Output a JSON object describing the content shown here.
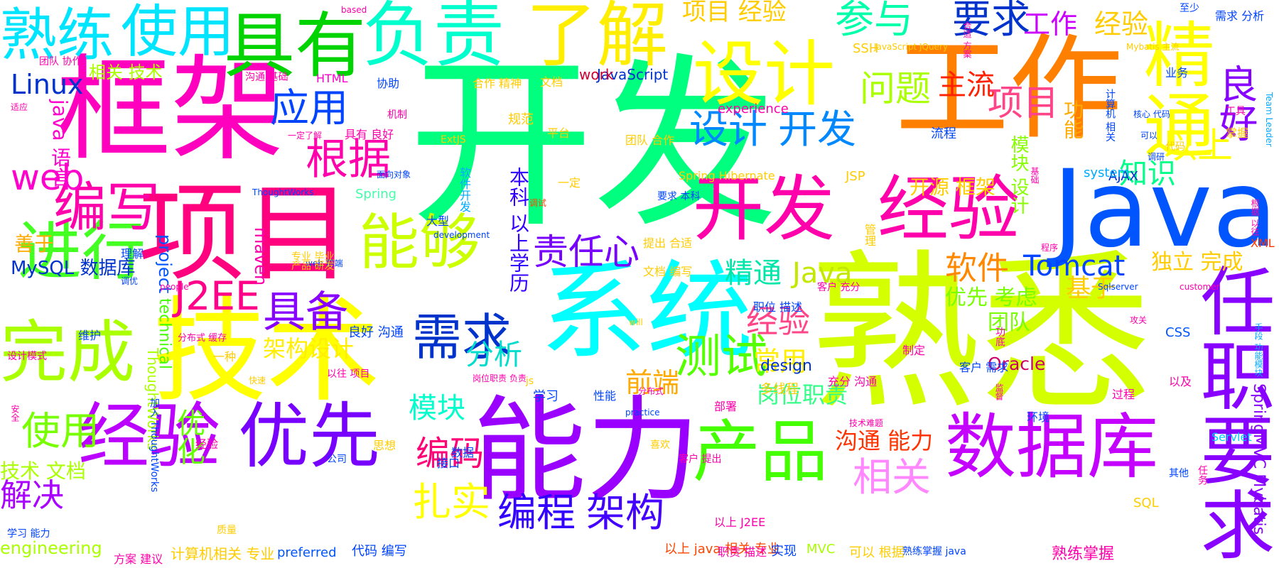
{
  "cloud": {
    "words": [
      {
        "text": "开发",
        "color": "#00ff7f"
      },
      {
        "text": "熟悉",
        "color": "#d4ff00"
      },
      {
        "text": "工作",
        "color": "#ff7f00"
      },
      {
        "text": "框架",
        "color": "#ff00bf"
      },
      {
        "text": "项目",
        "color": "#ff007f"
      },
      {
        "text": "技术",
        "color": "#ffff00"
      },
      {
        "text": "能力",
        "color": "#9900ff"
      },
      {
        "text": "系统",
        "color": "#00ffff"
      },
      {
        "text": "Java",
        "color": "#0055ff"
      },
      {
        "text": "负责",
        "color": "#00ffcc"
      },
      {
        "text": "具有",
        "color": "#00d400"
      },
      {
        "text": "了解",
        "color": "#ffee00"
      },
      {
        "text": "熟练",
        "color": "#00e5ff"
      },
      {
        "text": "使用",
        "color": "#00e5ff"
      },
      {
        "text": "设计",
        "color": "#ffff00"
      },
      {
        "text": "精通",
        "color": "#ffff00"
      },
      {
        "text": "开发",
        "color": "#ff00aa"
      },
      {
        "text": "经验",
        "color": "#ff00aa"
      },
      {
        "text": "任职要求",
        "color": "#8800ff"
      },
      {
        "text": "数据库",
        "color": "#c400ff"
      },
      {
        "text": "产品",
        "color": "#44ff00"
      },
      {
        "text": "经验",
        "color": "#bb00ff"
      },
      {
        "text": "优先",
        "color": "#7700ff"
      },
      {
        "text": "完成",
        "color": "#aaff00"
      },
      {
        "text": "进行",
        "color": "#44ff22"
      },
      {
        "text": "编写",
        "color": "#ff00aa"
      },
      {
        "text": "能够",
        "color": "#ccff00"
      },
      {
        "text": "需求",
        "color": "#0033cc"
      },
      {
        "text": "测试",
        "color": "#55ff00"
      },
      {
        "text": "设计",
        "color": "#0088ff"
      },
      {
        "text": "开发",
        "color": "#0088ff"
      },
      {
        "text": "项目",
        "color": "#ff4488"
      },
      {
        "text": "经验",
        "color": "#ff4488"
      },
      {
        "text": "参与",
        "color": "#00ffaa"
      },
      {
        "text": "要求",
        "color": "#0033cc"
      },
      {
        "text": "工作",
        "color": "#cc00ff"
      },
      {
        "text": "经验",
        "color": "#ffcc00"
      },
      {
        "text": "良好",
        "color": "#8800ff"
      },
      {
        "text": "以上",
        "color": "#ffff00"
      },
      {
        "text": "知识",
        "color": "#00ff88"
      },
      {
        "text": "问题",
        "color": "#aaff00"
      },
      {
        "text": "主流",
        "color": "#ff2200"
      },
      {
        "text": "应用",
        "color": "#0044ff"
      },
      {
        "text": "根据",
        "color": "#ff00aa"
      },
      {
        "text": "责任心",
        "color": "#7700ff"
      },
      {
        "text": "具备",
        "color": "#8800ff"
      },
      {
        "text": "J2EE",
        "color": "#ff0088"
      },
      {
        "text": "Tomcat",
        "color": "#0044ff"
      },
      {
        "text": "软件",
        "color": "#ff8800"
      },
      {
        "text": "精通",
        "color": "#00e5aa"
      },
      {
        "text": "Java",
        "color": "#c4e800"
      },
      {
        "text": "web",
        "color": "#ff00cc"
      },
      {
        "text": "Linux",
        "color": "#0033cc"
      },
      {
        "text": "相关 技术",
        "color": "#aaff00"
      },
      {
        "text": "使用",
        "color": "#77ff00"
      },
      {
        "text": "解决",
        "color": "#aa00ff"
      },
      {
        "text": "编码",
        "color": "#ff0077"
      },
      {
        "text": "模块",
        "color": "#00ffcc"
      },
      {
        "text": "分析",
        "color": "#00ddcc"
      },
      {
        "text": "扎实",
        "color": "#ffff00"
      },
      {
        "text": "编程",
        "color": "#3300ff"
      },
      {
        "text": "架构",
        "color": "#4400ff"
      },
      {
        "text": "相关",
        "color": "#ff88ff"
      },
      {
        "text": "沟通 能力",
        "color": "#ff3300"
      },
      {
        "text": "岗位职责",
        "color": "#33ff88"
      },
      {
        "text": "前端",
        "color": "#ffaa00"
      },
      {
        "text": "常用",
        "color": "#ffee00"
      },
      {
        "text": "架构设计",
        "color": "#ffee00"
      },
      {
        "text": "优化",
        "color": "#66ff00"
      },
      {
        "text": "本科 以上学历",
        "color": "#3300ff"
      },
      {
        "text": "独立 完成",
        "color": "#ffcc00"
      },
      {
        "text": "基于",
        "color": "#ffcc00"
      },
      {
        "text": "优先 考虑",
        "color": "#77ff00"
      },
      {
        "text": "团队",
        "color": "#77ff00"
      },
      {
        "text": "项目 经验",
        "color": "#ffcc00"
      },
      {
        "text": "java 语言",
        "color": "#ff00cc"
      },
      {
        "text": "善于",
        "color": "#ffaa00"
      },
      {
        "text": "MySQL 数据库",
        "color": "#0033cc"
      },
      {
        "text": "技术 文档",
        "color": "#aaff00"
      },
      {
        "text": "engineering",
        "color": "#aaff00"
      },
      {
        "text": "开源 框架",
        "color": "#ffcc00"
      },
      {
        "text": "模块 设计",
        "color": "#88ff00"
      },
      {
        "text": "功能",
        "color": "#ffaa00"
      },
      {
        "text": "Oracle",
        "color": "#cc0066"
      },
      {
        "text": "SpringMVC Mybatis",
        "color": "#8800ff"
      },
      {
        "text": "ThoughtWorks",
        "color": "#aaff00"
      },
      {
        "text": "maven",
        "color": "#ff00aa"
      },
      {
        "text": "project",
        "color": "#0055ff"
      },
      {
        "text": "technical",
        "color": "#44ff00"
      },
      {
        "text": "design",
        "color": "#0033cc"
      },
      {
        "text": "JavaScript",
        "color": "#0033cc"
      },
      {
        "text": "work",
        "color": "#cc0033"
      },
      {
        "text": "experience",
        "color": "#ff00aa"
      },
      {
        "text": "HTML",
        "color": "#ff00cc"
      },
      {
        "text": "SSH",
        "color": "#ffcc00"
      },
      {
        "text": "Spring",
        "color": "#44ffaa"
      },
      {
        "text": "JSP",
        "color": "#ffcc00"
      },
      {
        "text": "AJAX",
        "color": "#0033cc"
      },
      {
        "text": "system",
        "color": "#00aaff"
      },
      {
        "text": "CSS",
        "color": "#0055ff"
      },
      {
        "text": "XML",
        "color": "#ff3300"
      },
      {
        "text": "SQL",
        "color": "#ffcc00"
      },
      {
        "text": "MVC",
        "color": "#aaff00"
      },
      {
        "text": "js",
        "color": "#ffcc00"
      },
      {
        "text": "Servlet",
        "color": "#00ccff"
      },
      {
        "text": "preferred",
        "color": "#0055ff"
      },
      {
        "text": "Spring Hibernate",
        "color": "#ffcc00"
      },
      {
        "text": "计算机相关 专业",
        "color": "#ffcc00"
      },
      {
        "text": "以上 java 相关 专业",
        "color": "#ff4400"
      },
      {
        "text": "可以 根据",
        "color": "#ffcc00"
      },
      {
        "text": "熟练掌握",
        "color": "#ff00aa"
      },
      {
        "text": "职责 描述",
        "color": "#ff00aa"
      },
      {
        "text": "代码 编写",
        "color": "#0044ff"
      },
      {
        "text": "方案 建议",
        "color": "#ff00aa"
      },
      {
        "text": "实现",
        "color": "#0044ff"
      },
      {
        "text": "团队 协作",
        "color": "#ff00aa"
      },
      {
        "text": "沟通 基础",
        "color": "#ff00aa"
      },
      {
        "text": "协助",
        "color": "#0044ff"
      },
      {
        "text": "合作 精神",
        "color": "#ffcc00"
      },
      {
        "text": "文档",
        "color": "#ffcc00"
      },
      {
        "text": "平台",
        "color": "#ffcc00"
      },
      {
        "text": "规范",
        "color": "#ffcc00"
      },
      {
        "text": "团队 合作",
        "color": "#ffcc00"
      },
      {
        "text": "流程",
        "color": "#0044ff"
      },
      {
        "text": "业务",
        "color": "#0044ff"
      },
      {
        "text": "工具",
        "color": "#ff00aa"
      },
      {
        "text": "掌握",
        "color": "#ffcc00"
      },
      {
        "text": "至少",
        "color": "#0044ff"
      },
      {
        "text": "需求 分析",
        "color": "#0044ff"
      },
      {
        "text": "维护",
        "color": "#0044ff"
      },
      {
        "text": "良好 沟通",
        "color": "#0044ff"
      },
      {
        "text": "学习",
        "color": "#0044ff"
      },
      {
        "text": "性能",
        "color": "#0044ff"
      },
      {
        "text": "多线程",
        "color": "#ffcc00"
      },
      {
        "text": "部署",
        "color": "#ff00aa"
      },
      {
        "text": "客户 需求",
        "color": "#0044ff"
      },
      {
        "text": "环境",
        "color": "#0044ff"
      },
      {
        "text": "过程",
        "color": "#ff00aa"
      },
      {
        "text": "以及",
        "color": "#ff00aa"
      },
      {
        "text": "其他",
        "color": "#0044ff"
      },
      {
        "text": "接口",
        "color": "#0044ff"
      },
      {
        "text": "数据",
        "color": "#0044ff"
      },
      {
        "text": "思想",
        "color": "#ffcc00"
      },
      {
        "text": "公司",
        "color": "#0044ff"
      },
      {
        "text": "经验",
        "color": "#ff00aa"
      },
      {
        "text": "设计模式",
        "color": "#ff00aa"
      },
      {
        "text": "分布式 缓存",
        "color": "#ff00aa"
      },
      {
        "text": "以往 项目",
        "color": "#ff00aa"
      },
      {
        "text": "一种",
        "color": "#ffcc00"
      },
      {
        "text": "质量",
        "color": "#ffcc00"
      },
      {
        "text": "学习 能力",
        "color": "#0044ff"
      },
      {
        "text": "职位 描述",
        "color": "#0044ff"
      },
      {
        "text": "充分 沟通",
        "color": "#ff00aa"
      },
      {
        "text": "客户 充分",
        "color": "#ff00aa"
      },
      {
        "text": "提出 合适",
        "color": "#ffcc00"
      },
      {
        "text": "文档 编写",
        "color": "#ffcc00"
      },
      {
        "text": "程序",
        "color": "#ff00aa"
      },
      {
        "text": "制定",
        "color": "#ff00aa"
      },
      {
        "text": "管理",
        "color": "#ffcc00"
      },
      {
        "text": "调研",
        "color": "#0044ff"
      },
      {
        "text": "代码",
        "color": "#ffcc00"
      },
      {
        "text": "based",
        "color": "#ff00aa"
      },
      {
        "text": "合适 方案",
        "color": "#ff00aa"
      },
      {
        "text": "JavaScript JQuery",
        "color": "#ffcc00"
      },
      {
        "text": "Mybatis 主流",
        "color": "#ffcc00"
      },
      {
        "text": "Team Leader",
        "color": "#00aaff"
      },
      {
        "text": "Sqlserver",
        "color": "#0044ff"
      },
      {
        "text": "customer",
        "color": "#ff00aa"
      },
      {
        "text": "development",
        "color": "#0044ff"
      },
      {
        "text": "people",
        "color": "#ff00aa"
      },
      {
        "text": "practice",
        "color": "#0044ff"
      },
      {
        "text": "will",
        "color": "#ffcc00"
      },
      {
        "text": "ExtJS",
        "color": "#ffcc00"
      },
      {
        "text": "ThoughtWorks",
        "color": "#0044ff"
      },
      {
        "text": "快速",
        "color": "#ffcc00"
      },
      {
        "text": "安全",
        "color": "#ff00aa"
      },
      {
        "text": "加入 ThoughtWorks",
        "color": "#0044ff"
      },
      {
        "text": "专业 毕业",
        "color": "#ffcc00"
      },
      {
        "text": "web 前端",
        "color": "#0044ff"
      },
      {
        "text": "产品 研发",
        "color": "#ffcc00"
      },
      {
        "text": "理解",
        "color": "#0044ff"
      },
      {
        "text": "调优",
        "color": "#0044ff"
      },
      {
        "text": "适应",
        "color": "#ff00aa"
      },
      {
        "text": "一定了解",
        "color": "#ff00aa"
      },
      {
        "text": "具有 良好",
        "color": "#ff00aa"
      },
      {
        "text": "机制",
        "color": "#ff00aa"
      },
      {
        "text": "面向对象",
        "color": "#0044ff"
      },
      {
        "text": "一定",
        "color": "#ffcc00"
      },
      {
        "text": "软件开发",
        "color": "#00aaff"
      },
      {
        "text": "调试",
        "color": "#ff4400"
      },
      {
        "text": "大型",
        "color": "#0044ff"
      },
      {
        "text": "要求 本科",
        "color": "#0044ff"
      },
      {
        "text": "岗位职责 负责",
        "color": "#ff00aa"
      },
      {
        "text": "喜欢",
        "color": "#ffcc00"
      },
      {
        "text": "客户 提出",
        "color": "#ff00aa"
      },
      {
        "text": "分布式",
        "color": "#ff00aa"
      },
      {
        "text": "技术难题",
        "color": "#ff00aa"
      },
      {
        "text": "攻关",
        "color": "#ff00aa"
      },
      {
        "text": "手段 功能模块",
        "color": "#00aaff"
      },
      {
        "text": "根据 以往",
        "color": "#ff00aa"
      },
      {
        "text": "核心 代码",
        "color": "#0044ff"
      },
      {
        "text": "计算机 相关",
        "color": "#0044ff"
      },
      {
        "text": "基础",
        "color": "#ff00aa"
      },
      {
        "text": "可以",
        "color": "#0044ff"
      },
      {
        "text": "功底",
        "color": "#ff00aa"
      },
      {
        "text": "以上 J2EE",
        "color": "#ff00aa"
      },
      {
        "text": "熟练掌握 java",
        "color": "#0044ff"
      },
      {
        "text": "监督",
        "color": "#ff00aa"
      },
      {
        "text": "任务",
        "color": "#ff00aa"
      }
    ]
  }
}
